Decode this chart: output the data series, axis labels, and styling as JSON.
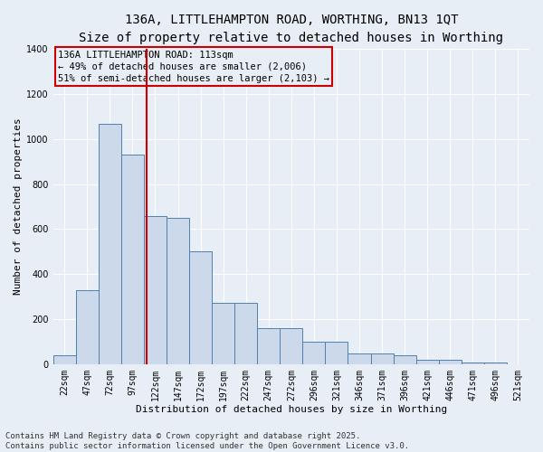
{
  "title_line1": "136A, LITTLEHAMPTON ROAD, WORTHING, BN13 1QT",
  "title_line2": "Size of property relative to detached houses in Worthing",
  "xlabel": "Distribution of detached houses by size in Worthing",
  "ylabel": "Number of detached properties",
  "categories": [
    "22sqm",
    "47sqm",
    "72sqm",
    "97sqm",
    "122sqm",
    "147sqm",
    "172sqm",
    "197sqm",
    "222sqm",
    "247sqm",
    "272sqm",
    "296sqm",
    "321sqm",
    "346sqm",
    "371sqm",
    "396sqm",
    "421sqm",
    "446sqm",
    "471sqm",
    "496sqm",
    "521sqm"
  ],
  "values": [
    40,
    330,
    1065,
    930,
    660,
    650,
    500,
    275,
    275,
    160,
    160,
    100,
    100,
    50,
    50,
    40,
    20,
    20,
    10,
    8,
    2
  ],
  "bar_color": "#ccd9ea",
  "bar_edge_color": "#5080b0",
  "background_color": "#e8eef5",
  "grid_color": "#ffffff",
  "annotation_box_color": "#cc0000",
  "property_line_color": "#cc0000",
  "property_label": "136A LITTLEHAMPTON ROAD: 113sqm",
  "annotation_line1": "← 49% of detached houses are smaller (2,006)",
  "annotation_line2": "51% of semi-detached houses are larger (2,103) →",
  "ylim": [
    0,
    1400
  ],
  "yticks": [
    0,
    200,
    400,
    600,
    800,
    1000,
    1200,
    1400
  ],
  "footer_line1": "Contains HM Land Registry data © Crown copyright and database right 2025.",
  "footer_line2": "Contains public sector information licensed under the Open Government Licence v3.0.",
  "title_fontsize": 10,
  "subtitle_fontsize": 9,
  "axis_label_fontsize": 8,
  "tick_fontsize": 7,
  "annotation_fontsize": 7.5,
  "footer_fontsize": 6.5
}
